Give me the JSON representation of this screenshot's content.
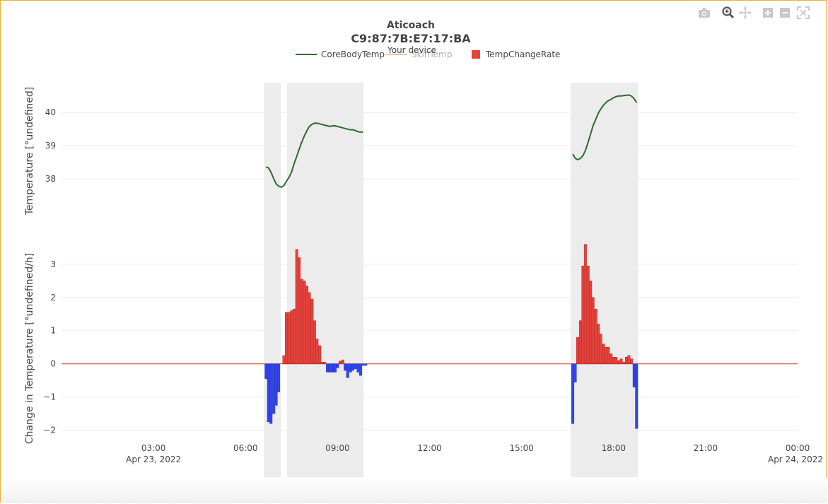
{
  "chart_data": {
    "type": "bar",
    "title": "Aticoach",
    "device_id": "C9:87:7B:E7:17:BA",
    "subtitle": "Your device",
    "legend": [
      {
        "name": "CoreBodyTemp",
        "color": "#2e6b2e",
        "visible": true,
        "symbol": "line"
      },
      {
        "name": "SkinTemp",
        "color": "#e28a3a",
        "visible": false,
        "symbol": "line"
      },
      {
        "name": "TempChangeRate",
        "color": "#e8413c",
        "visible": true,
        "symbol": "square"
      }
    ],
    "legend_position": "top-center",
    "x_axis": {
      "type": "time",
      "range": [
        "2022-04-23 00:00",
        "2022-04-24 00:00"
      ],
      "ticks": [
        {
          "hour": 3,
          "label": "03:00",
          "sublabel": "Apr 23, 2022"
        },
        {
          "hour": 6,
          "label": "06:00",
          "sublabel": ""
        },
        {
          "hour": 9,
          "label": "09:00",
          "sublabel": ""
        },
        {
          "hour": 12,
          "label": "12:00",
          "sublabel": ""
        },
        {
          "hour": 15,
          "label": "15:00",
          "sublabel": ""
        },
        {
          "hour": 18,
          "label": "18:00",
          "sublabel": ""
        },
        {
          "hour": 21,
          "label": "21:00",
          "sublabel": ""
        },
        {
          "hour": 24,
          "label": "00:00",
          "sublabel": "Apr 24, 2022"
        }
      ]
    },
    "top_panel": {
      "ylabel": "Temperature [°undefined]",
      "ylim": [
        37,
        40.9
      ],
      "ticks": [
        38,
        39,
        40
      ],
      "grid": true,
      "series": [
        {
          "name": "CoreBodyTemp",
          "color": "#2e6b2e",
          "segments": [
            [
              [
                6.67,
                38.36
              ],
              [
                6.75,
                38.33
              ],
              [
                6.83,
                38.2
              ],
              [
                6.92,
                38.0
              ],
              [
                7.0,
                37.85
              ],
              [
                7.08,
                37.78
              ],
              [
                7.17,
                37.75
              ],
              [
                7.25,
                37.8
              ],
              [
                7.33,
                37.92
              ],
              [
                7.42,
                38.05
              ],
              [
                7.5,
                38.2
              ],
              [
                7.58,
                38.45
              ],
              [
                7.67,
                38.68
              ],
              [
                7.75,
                38.9
              ],
              [
                7.83,
                39.1
              ],
              [
                7.92,
                39.3
              ],
              [
                8.0,
                39.45
              ],
              [
                8.08,
                39.58
              ],
              [
                8.17,
                39.65
              ],
              [
                8.25,
                39.68
              ],
              [
                8.33,
                39.68
              ],
              [
                8.42,
                39.66
              ],
              [
                8.5,
                39.64
              ],
              [
                8.58,
                39.62
              ],
              [
                8.67,
                39.6
              ],
              [
                8.75,
                39.58
              ],
              [
                8.83,
                39.6
              ],
              [
                8.92,
                39.6
              ],
              [
                9.0,
                39.58
              ],
              [
                9.08,
                39.56
              ],
              [
                9.17,
                39.54
              ],
              [
                9.25,
                39.52
              ],
              [
                9.33,
                39.5
              ],
              [
                9.42,
                39.48
              ],
              [
                9.5,
                39.48
              ],
              [
                9.58,
                39.46
              ],
              [
                9.67,
                39.42
              ],
              [
                9.75,
                39.41
              ],
              [
                9.83,
                39.41
              ]
            ],
            [
              [
                16.67,
                38.75
              ],
              [
                16.75,
                38.62
              ],
              [
                16.83,
                38.58
              ],
              [
                16.92,
                38.62
              ],
              [
                17.0,
                38.7
              ],
              [
                17.08,
                38.85
              ],
              [
                17.17,
                39.1
              ],
              [
                17.25,
                39.35
              ],
              [
                17.33,
                39.6
              ],
              [
                17.42,
                39.8
              ],
              [
                17.5,
                39.98
              ],
              [
                17.58,
                40.1
              ],
              [
                17.67,
                40.22
              ],
              [
                17.75,
                40.3
              ],
              [
                17.83,
                40.36
              ],
              [
                17.92,
                40.4
              ],
              [
                18.0,
                40.45
              ],
              [
                18.08,
                40.48
              ],
              [
                18.17,
                40.5
              ],
              [
                18.25,
                40.5
              ],
              [
                18.33,
                40.51
              ],
              [
                18.42,
                40.52
              ],
              [
                18.5,
                40.53
              ],
              [
                18.58,
                40.5
              ],
              [
                18.67,
                40.42
              ],
              [
                18.75,
                40.3
              ]
            ]
          ]
        }
      ]
    },
    "bottom_panel": {
      "ylabel": "Change in Temperature [°undefined/h]",
      "ylim": [
        -2.2,
        3.55
      ],
      "ticks": [
        -2,
        -1,
        0,
        1,
        2,
        3
      ],
      "grid": true,
      "zero_line_color": "#c0392b",
      "positive_color": "#e8413c",
      "negative_color": "#3344ee",
      "bar_width_h": 0.08,
      "bars": [
        [
          6.67,
          -0.45
        ],
        [
          6.75,
          -1.75
        ],
        [
          6.83,
          -1.8
        ],
        [
          6.92,
          -1.5
        ],
        [
          7.0,
          -1.25
        ],
        [
          7.08,
          -0.85
        ],
        [
          7.25,
          0.25
        ],
        [
          7.33,
          1.55
        ],
        [
          7.42,
          1.55
        ],
        [
          7.5,
          1.6
        ],
        [
          7.58,
          1.65
        ],
        [
          7.67,
          3.45
        ],
        [
          7.75,
          3.2
        ],
        [
          7.83,
          2.55
        ],
        [
          7.92,
          2.5
        ],
        [
          8.0,
          2.35
        ],
        [
          8.08,
          2.15
        ],
        [
          8.17,
          1.95
        ],
        [
          8.25,
          1.3
        ],
        [
          8.33,
          0.75
        ],
        [
          8.42,
          0.55
        ],
        [
          8.5,
          0.05
        ],
        [
          8.58,
          0.05
        ],
        [
          8.67,
          -0.25
        ],
        [
          8.75,
          -0.25
        ],
        [
          8.83,
          -0.25
        ],
        [
          8.92,
          -0.25
        ],
        [
          9.0,
          -0.12
        ],
        [
          9.08,
          0.08
        ],
        [
          9.17,
          0.12
        ],
        [
          9.25,
          -0.2
        ],
        [
          9.33,
          -0.42
        ],
        [
          9.42,
          -0.25
        ],
        [
          9.5,
          -0.2
        ],
        [
          9.58,
          -0.15
        ],
        [
          9.67,
          -0.25
        ],
        [
          9.75,
          -0.35
        ],
        [
          9.83,
          -0.05
        ],
        [
          9.92,
          -0.05
        ],
        [
          16.67,
          -1.8
        ],
        [
          16.75,
          -0.55
        ],
        [
          16.83,
          0.8
        ],
        [
          16.92,
          1.3
        ],
        [
          17.0,
          2.95
        ],
        [
          17.08,
          3.6
        ],
        [
          17.17,
          2.95
        ],
        [
          17.25,
          2.5
        ],
        [
          17.33,
          2.0
        ],
        [
          17.42,
          1.65
        ],
        [
          17.5,
          1.2
        ],
        [
          17.58,
          0.9
        ],
        [
          17.67,
          0.6
        ],
        [
          17.75,
          0.5
        ],
        [
          17.83,
          0.5
        ],
        [
          17.92,
          0.3
        ],
        [
          18.0,
          0.2
        ],
        [
          18.08,
          0.2
        ],
        [
          18.17,
          0.1
        ],
        [
          18.25,
          0.15
        ],
        [
          18.33,
          0.05
        ],
        [
          18.42,
          0.2
        ],
        [
          18.5,
          0.25
        ],
        [
          18.58,
          0.15
        ],
        [
          18.67,
          -0.7
        ],
        [
          18.75,
          -1.95
        ]
      ]
    },
    "shaded_regions": [
      [
        6.6,
        7.15
      ],
      [
        7.35,
        9.85
      ],
      [
        16.6,
        18.8
      ]
    ],
    "shade_color": "#ececec"
  },
  "toolbar": [
    {
      "name": "camera-icon",
      "title": "Download plot as a png"
    },
    {
      "name": "zoom-icon",
      "title": "Zoom"
    },
    {
      "name": "pan-icon",
      "title": "Pan"
    },
    {
      "name": "zoom-in-icon",
      "title": "Zoom in"
    },
    {
      "name": "zoom-out-icon",
      "title": "Zoom out"
    },
    {
      "name": "autoscale-icon",
      "title": "Autoscale"
    }
  ]
}
